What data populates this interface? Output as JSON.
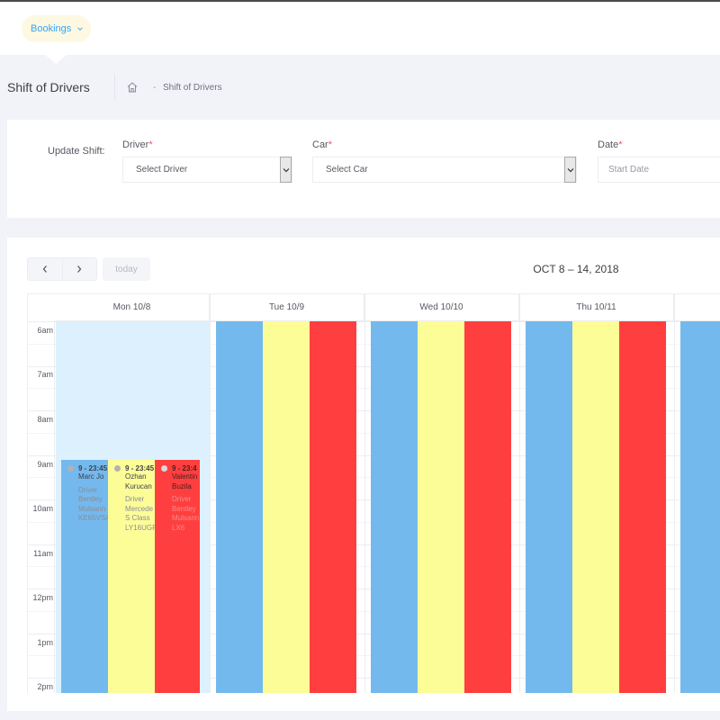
{
  "header": {
    "menu_label": "Bookings"
  },
  "subheader": {
    "title": "Shift of Drivers",
    "breadcrumb_sep": "-",
    "breadcrumb_item": "Shift of Drivers"
  },
  "form": {
    "label": "Update Shift:",
    "driver_label": "Driver",
    "driver_value": "Select Driver",
    "car_label": "Car",
    "car_value": "Select Car",
    "date_label": "Date",
    "date_placeholder": "Start Date",
    "required_mark": "*"
  },
  "calendar": {
    "prev_icon": "chevron-left-icon",
    "next_icon": "chevron-right-icon",
    "today_label": "today",
    "title": "OCT 8 – 14, 2018",
    "days": [
      "Mon 10/8",
      "Tue 10/9",
      "Wed 10/10",
      "Thu 10/11"
    ],
    "times": [
      "6am",
      "7am",
      "8am",
      "9am",
      "10am",
      "11am",
      "12pm",
      "1pm",
      "2pm"
    ],
    "events": [
      {
        "time": "9 - 23:45",
        "name": "Marc Jo",
        "role": "Driver",
        "car1": "Bentley",
        "car2": "Mulsann",
        "plate": "KE65VSA"
      },
      {
        "time": "9 - 23:45",
        "name": "Ozhan",
        "name2": "Kurucan",
        "role": "Driver",
        "car1": "Mercede",
        "car2": "S Class",
        "plate": "LY16UGF"
      },
      {
        "time": "9 - 23:4",
        "name": "Valentin",
        "name2": "Buzila",
        "role": "Driver",
        "car1": "Bentley",
        "car2": "Mulsann",
        "plate": "LX6"
      }
    ],
    "colors": {
      "blue": "#74b9ee",
      "yellow": "#fdfd98",
      "red": "#ff3f3f",
      "today_bg": "#dcf1fd"
    }
  }
}
